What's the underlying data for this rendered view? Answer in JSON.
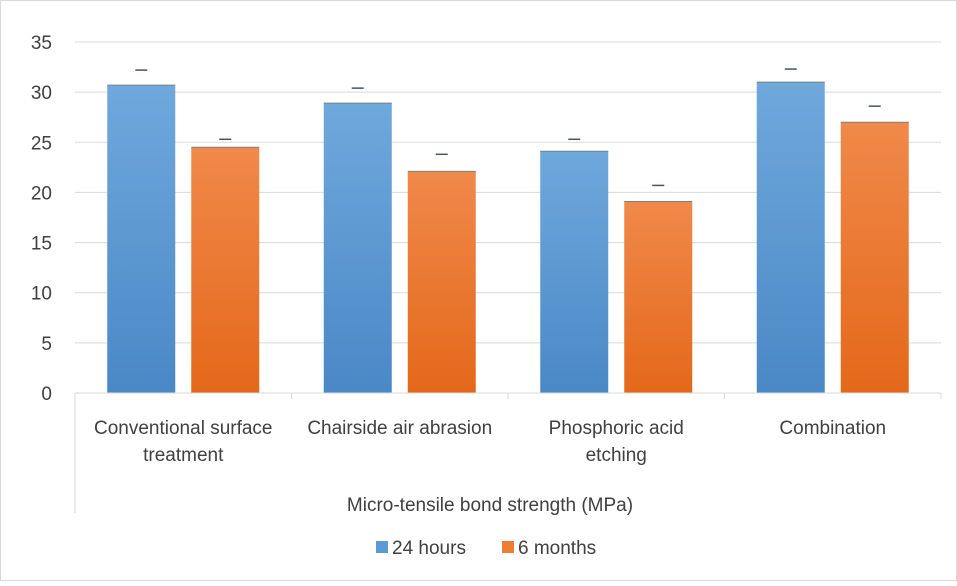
{
  "chart_data": {
    "type": "bar",
    "categories": [
      [
        "Conventional surface",
        "treatment"
      ],
      [
        "Chairside air abrasion"
      ],
      [
        "Phosphoric acid",
        "etching"
      ],
      [
        "Combination"
      ]
    ],
    "xlabel": "Micro-tensile bond strength (MPa)",
    "ylim": [
      0,
      35
    ],
    "y_ticks": [
      "0",
      "5",
      "10",
      "15",
      "20",
      "25",
      "30",
      "35"
    ],
    "grid": true,
    "legend_position": "bottom",
    "series": [
      {
        "name": "24 hours",
        "color": "#5b9bd5",
        "values": [
          30.7,
          28.9,
          24.1,
          31.0
        ],
        "error_upper": [
          32.2,
          30.4,
          25.3,
          32.3
        ]
      },
      {
        "name": "6 months",
        "color": "#ed7d31",
        "values": [
          24.5,
          22.1,
          19.1,
          27.0
        ],
        "error_upper": [
          25.3,
          23.8,
          20.7,
          28.6
        ]
      }
    ]
  }
}
